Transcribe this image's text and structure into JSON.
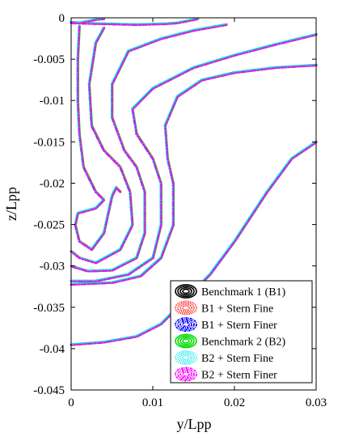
{
  "chart_data": {
    "type": "line",
    "title": "",
    "xlabel": "y/Lpp",
    "ylabel": "z/Lpp",
    "xlim": [
      0,
      0.03
    ],
    "ylim": [
      -0.045,
      0
    ],
    "xticks": [
      0,
      0.01,
      0.02,
      0.03
    ],
    "xtick_labels": [
      "0",
      "0.01",
      "0.02",
      "0.03"
    ],
    "yticks": [
      0,
      -0.005,
      -0.01,
      -0.015,
      -0.02,
      -0.025,
      -0.03,
      -0.035,
      -0.04,
      -0.045
    ],
    "ytick_labels": [
      "0",
      "-0.005",
      "-0.01",
      "-0.015",
      "-0.02",
      "-0.025",
      "-0.03",
      "-0.035",
      "-0.04",
      "-0.045"
    ],
    "grid": false,
    "legend_position": "bottom-right",
    "series": [
      {
        "name": "Benchmark 1 (B1)",
        "color": "#000000",
        "style": "solid"
      },
      {
        "name": "B1 + Stern Fine",
        "color": "#ff0000",
        "style": "dotted"
      },
      {
        "name": "B1 + Stern Finer",
        "color": "#0000ff",
        "style": "dashdot"
      },
      {
        "name": "Benchmark 2 (B2)",
        "color": "#00dd00",
        "style": "solid"
      },
      {
        "name": "B2 + Stern Fine",
        "color": "#00e5ee",
        "style": "dotted"
      },
      {
        "name": "B2 + Stern Finer",
        "color": "#ff00ff",
        "style": "dashdot"
      }
    ],
    "contours": [
      {
        "id": "c1",
        "points": [
          [
            0.0,
            -0.0006
          ],
          [
            0.004,
            -0.0007
          ],
          [
            0.008,
            -0.0008
          ],
          [
            0.0115,
            -0.0007
          ],
          [
            0.013,
            -0.0006
          ],
          [
            0.0145,
            -0.0003
          ],
          [
            0.0155,
            -0.0001
          ]
        ]
      },
      {
        "id": "c2",
        "points": [
          [
            0.0,
            -0.0005
          ],
          [
            0.001,
            -0.0006
          ],
          [
            0.002,
            -0.0004
          ],
          [
            0.003,
            -0.0002
          ],
          [
            0.004,
            -0.0001
          ]
        ]
      },
      {
        "id": "c3",
        "points": [
          [
            0.001,
            -0.001
          ],
          [
            0.0008,
            -0.005
          ],
          [
            0.0008,
            -0.01
          ],
          [
            0.001,
            -0.014
          ],
          [
            0.0015,
            -0.018
          ],
          [
            0.0025,
            -0.02
          ],
          [
            0.003,
            -0.021
          ],
          [
            0.004,
            -0.022
          ],
          [
            0.003,
            -0.023
          ],
          [
            0.0008,
            -0.0236
          ],
          [
            0.0005,
            -0.025
          ],
          [
            0.001,
            -0.027
          ],
          [
            0.0025,
            -0.028
          ],
          [
            0.004,
            -0.026
          ],
          [
            0.005,
            -0.0215
          ],
          [
            0.0055,
            -0.0205
          ],
          [
            0.006,
            -0.021
          ]
        ]
      },
      {
        "id": "c4",
        "points": [
          [
            0.004,
            -0.0012
          ],
          [
            0.003,
            -0.003
          ],
          [
            0.0022,
            -0.008
          ],
          [
            0.0025,
            -0.013
          ],
          [
            0.004,
            -0.016
          ],
          [
            0.006,
            -0.018
          ],
          [
            0.0072,
            -0.021
          ],
          [
            0.0075,
            -0.025
          ],
          [
            0.006,
            -0.028
          ],
          [
            0.003,
            -0.0296
          ],
          [
            0.001,
            -0.029
          ],
          [
            0.0,
            -0.0282
          ]
        ]
      },
      {
        "id": "c5",
        "points": [
          [
            0.019,
            -0.0008
          ],
          [
            0.015,
            -0.0015
          ],
          [
            0.011,
            -0.0025
          ],
          [
            0.007,
            -0.004
          ],
          [
            0.005,
            -0.008
          ],
          [
            0.005,
            -0.012
          ],
          [
            0.0065,
            -0.016
          ],
          [
            0.008,
            -0.018
          ],
          [
            0.009,
            -0.021
          ],
          [
            0.009,
            -0.026
          ],
          [
            0.008,
            -0.029
          ],
          [
            0.005,
            -0.0305
          ],
          [
            0.002,
            -0.0306
          ],
          [
            0.0,
            -0.03
          ]
        ]
      },
      {
        "id": "c6",
        "points": [
          [
            0.03,
            -0.002
          ],
          [
            0.025,
            -0.0032
          ],
          [
            0.02,
            -0.0045
          ],
          [
            0.015,
            -0.006
          ],
          [
            0.01,
            -0.0085
          ],
          [
            0.0075,
            -0.011
          ],
          [
            0.008,
            -0.014
          ],
          [
            0.01,
            -0.017
          ],
          [
            0.011,
            -0.02
          ],
          [
            0.011,
            -0.025
          ],
          [
            0.01,
            -0.029
          ],
          [
            0.007,
            -0.031
          ],
          [
            0.003,
            -0.0318
          ],
          [
            0.0,
            -0.0318
          ]
        ]
      },
      {
        "id": "c7",
        "points": [
          [
            0.03,
            -0.0057
          ],
          [
            0.025,
            -0.006
          ],
          [
            0.02,
            -0.0066
          ],
          [
            0.016,
            -0.0075
          ],
          [
            0.013,
            -0.0095
          ],
          [
            0.0115,
            -0.013
          ],
          [
            0.0118,
            -0.017
          ],
          [
            0.0125,
            -0.02
          ],
          [
            0.0125,
            -0.025
          ],
          [
            0.011,
            -0.029
          ],
          [
            0.0085,
            -0.0312
          ],
          [
            0.005,
            -0.032
          ],
          [
            0.0,
            -0.0322
          ]
        ]
      },
      {
        "id": "c8",
        "points": [
          [
            0.03,
            -0.015
          ],
          [
            0.027,
            -0.017
          ],
          [
            0.024,
            -0.021
          ],
          [
            0.02,
            -0.027
          ],
          [
            0.017,
            -0.031
          ],
          [
            0.013,
            -0.035
          ],
          [
            0.011,
            -0.037
          ],
          [
            0.008,
            -0.0385
          ],
          [
            0.004,
            -0.0392
          ],
          [
            0.0,
            -0.0395
          ]
        ]
      }
    ]
  }
}
